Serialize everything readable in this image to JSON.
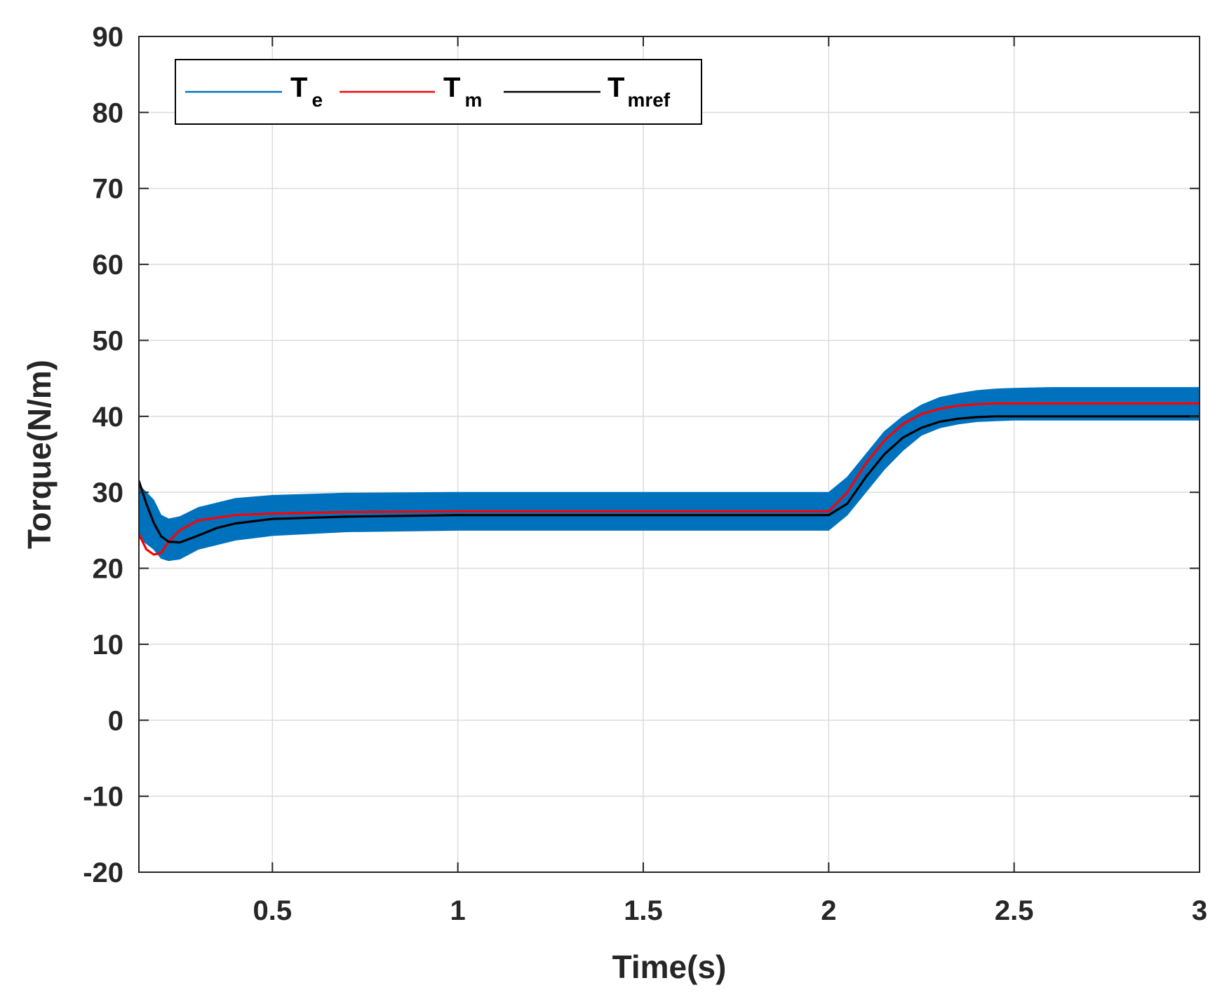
{
  "chart_data": {
    "type": "line",
    "xlabel": "Time(s)",
    "ylabel": "Torque(N/m)",
    "xlim": [
      0.14,
      3.0
    ],
    "ylim": [
      -20,
      90
    ],
    "xticks": [
      0.5,
      1,
      1.5,
      2,
      2.5,
      3
    ],
    "xtick_labels": [
      "0.5",
      "1",
      "1.5",
      "2",
      "2.5",
      "3"
    ],
    "yticks": [
      -20,
      -10,
      0,
      10,
      20,
      30,
      40,
      50,
      60,
      70,
      80,
      90
    ],
    "ytick_labels": [
      "-20",
      "-10",
      "0",
      "10",
      "20",
      "30",
      "40",
      "50",
      "60",
      "70",
      "80",
      "90"
    ],
    "grid": true,
    "legend_position": "top-left",
    "series": [
      {
        "name_main": "T",
        "name_sub": "e",
        "color": "#0072BD",
        "style": "ripple band",
        "x": [
          0.14,
          0.18,
          0.2,
          0.22,
          0.25,
          0.3,
          0.4,
          0.5,
          0.7,
          1.0,
          1.5,
          2.0,
          2.05,
          2.1,
          2.15,
          2.2,
          2.25,
          2.3,
          2.35,
          2.4,
          2.45,
          2.5,
          2.6,
          2.8,
          3.0
        ],
        "upper": [
          31,
          29,
          27,
          26.5,
          26.8,
          28.0,
          29.2,
          29.6,
          29.9,
          30.0,
          30.0,
          30.0,
          32.0,
          35.0,
          38.0,
          40.0,
          41.5,
          42.5,
          43.0,
          43.4,
          43.6,
          43.7,
          43.8,
          43.8,
          43.8
        ],
        "lower": [
          24,
          22.5,
          21.3,
          21.0,
          21.2,
          22.5,
          23.7,
          24.3,
          24.8,
          25.0,
          25.0,
          25.0,
          27.0,
          30.0,
          33.0,
          35.5,
          37.5,
          38.5,
          39.0,
          39.3,
          39.4,
          39.5,
          39.5,
          39.5,
          39.5
        ]
      },
      {
        "name_main": "T",
        "name_sub": "m",
        "color": "#FF0000",
        "x": [
          0.14,
          0.16,
          0.18,
          0.2,
          0.22,
          0.25,
          0.3,
          0.4,
          0.5,
          0.7,
          1.0,
          1.5,
          2.0,
          2.05,
          2.1,
          2.15,
          2.2,
          2.25,
          2.3,
          2.35,
          2.4,
          2.45,
          2.5,
          2.6,
          2.8,
          3.0
        ],
        "values": [
          24.5,
          22.5,
          21.8,
          22.0,
          23.5,
          25.0,
          26.3,
          27.0,
          27.2,
          27.4,
          27.5,
          27.5,
          27.5,
          30.0,
          33.8,
          36.8,
          39.0,
          40.3,
          41.0,
          41.4,
          41.6,
          41.7,
          41.7,
          41.7,
          41.7,
          41.7
        ]
      },
      {
        "name_main": "T",
        "name_sub": "mref",
        "color": "#000000",
        "x": [
          0.14,
          0.16,
          0.18,
          0.2,
          0.22,
          0.25,
          0.3,
          0.35,
          0.4,
          0.5,
          0.7,
          1.0,
          1.5,
          2.0,
          2.05,
          2.1,
          2.15,
          2.2,
          2.25,
          2.3,
          2.35,
          2.4,
          2.45,
          2.5,
          2.6,
          2.8,
          3.0
        ],
        "values": [
          31.5,
          28.5,
          26.0,
          24.2,
          23.5,
          23.4,
          24.3,
          25.3,
          25.9,
          26.5,
          26.8,
          27.0,
          27.0,
          27.0,
          28.5,
          32.0,
          35.0,
          37.2,
          38.5,
          39.3,
          39.7,
          39.9,
          40.0,
          40.0,
          40.0,
          40.0,
          40.0
        ]
      }
    ]
  }
}
